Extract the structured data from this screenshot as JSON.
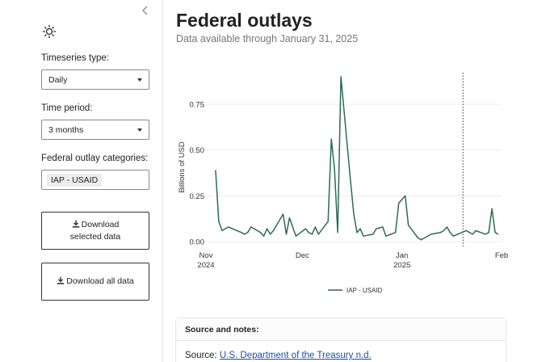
{
  "sidebar": {
    "timeseries_label": "Timeseries type:",
    "timeseries_value": "Daily",
    "period_label": "Time period:",
    "period_value": "3 months",
    "categories_label": "Federal outlay categories:",
    "categories_selected": [
      "IAP - USAID"
    ],
    "download_selected": "Download selected data",
    "download_all": "Download all data"
  },
  "main": {
    "title": "Federal outlays",
    "subtitle": "Data available through January 31, 2025"
  },
  "notes": {
    "heading": "Source and notes:",
    "source_prefix": "Source: ",
    "source_link": "U.S. Department of the Treasury n.d."
  },
  "chart_data": {
    "type": "line",
    "ylabel": "Billions of USD",
    "xlabel": "",
    "ylim": [
      0,
      0.9
    ],
    "y_ticks": [
      0.0,
      0.25,
      0.5,
      0.75
    ],
    "y_tick_labels": [
      "0.00",
      "0.25",
      "0.50",
      "0.75"
    ],
    "x_ticks": [
      {
        "date": "2024-11-01",
        "label": [
          "Nov",
          "2024"
        ]
      },
      {
        "date": "2024-12-01",
        "label": [
          "Dec"
        ]
      },
      {
        "date": "2025-01-01",
        "label": [
          "Jan",
          "2025"
        ]
      },
      {
        "date": "2025-02-01",
        "label": [
          "Feb"
        ]
      }
    ],
    "xlim": [
      "2024-11-01",
      "2025-02-01"
    ],
    "reference_line": {
      "date": "2025-01-20",
      "style": "dotted"
    },
    "grid": "horizontal",
    "legend_position": "bottom-center",
    "series": [
      {
        "name": "IAP - USAID",
        "color": "#2e6b4f",
        "x": [
          "2024-11-04",
          "2024-11-05",
          "2024-11-06",
          "2024-11-07",
          "2024-11-08",
          "2024-11-12",
          "2024-11-13",
          "2024-11-14",
          "2024-11-15",
          "2024-11-18",
          "2024-11-19",
          "2024-11-20",
          "2024-11-21",
          "2024-11-22",
          "2024-11-25",
          "2024-11-26",
          "2024-11-27",
          "2024-11-29",
          "2024-12-02",
          "2024-12-03",
          "2024-12-04",
          "2024-12-05",
          "2024-12-06",
          "2024-12-09",
          "2024-12-10",
          "2024-12-11",
          "2024-12-12",
          "2024-12-13",
          "2024-12-16",
          "2024-12-17",
          "2024-12-18",
          "2024-12-19",
          "2024-12-20",
          "2024-12-23",
          "2024-12-24",
          "2024-12-26",
          "2024-12-27",
          "2024-12-30",
          "2024-12-31",
          "2025-01-02",
          "2025-01-03",
          "2025-01-06",
          "2025-01-07",
          "2025-01-08",
          "2025-01-10",
          "2025-01-13",
          "2025-01-14",
          "2025-01-15",
          "2025-01-16",
          "2025-01-17",
          "2025-01-21",
          "2025-01-22",
          "2025-01-23",
          "2025-01-24",
          "2025-01-27",
          "2025-01-28",
          "2025-01-29",
          "2025-01-30",
          "2025-01-31"
        ],
        "values": [
          0.39,
          0.11,
          0.06,
          0.07,
          0.08,
          0.05,
          0.04,
          0.05,
          0.08,
          0.05,
          0.03,
          0.07,
          0.04,
          0.06,
          0.15,
          0.04,
          0.13,
          0.03,
          0.07,
          0.05,
          0.04,
          0.08,
          0.04,
          0.11,
          0.56,
          0.4,
          0.05,
          0.9,
          0.33,
          0.15,
          0.05,
          0.07,
          0.03,
          0.04,
          0.07,
          0.08,
          0.03,
          0.05,
          0.21,
          0.25,
          0.09,
          0.02,
          0.01,
          0.02,
          0.04,
          0.05,
          0.06,
          0.08,
          0.05,
          0.03,
          0.06,
          0.05,
          0.04,
          0.06,
          0.04,
          0.05,
          0.18,
          0.05,
          0.04
        ]
      }
    ]
  }
}
